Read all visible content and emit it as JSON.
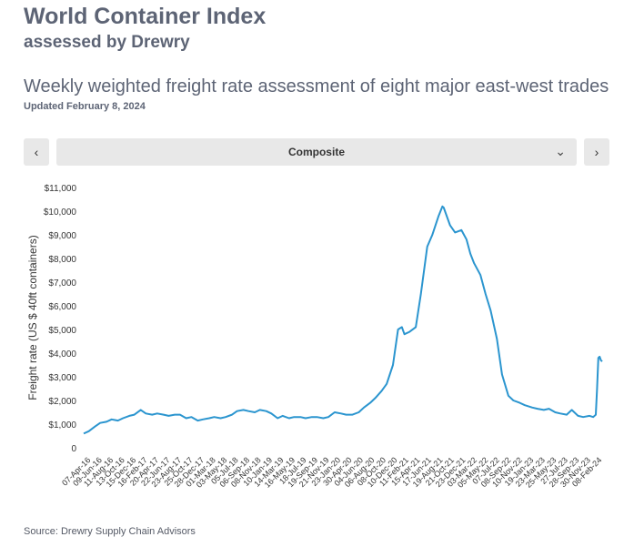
{
  "header": {
    "title": "World Container Index",
    "subtitle": "assessed by Drewry",
    "heading": "Weekly weighted freight rate assessment of eight major east-west trades",
    "updated": "Updated February 8, 2024"
  },
  "controls": {
    "prev_label": "‹",
    "next_label": "›",
    "selector_value": "Composite",
    "selector_chevron": "⌄"
  },
  "footer": {
    "source": "Source: Drewry Supply Chain Advisors"
  },
  "colors": {
    "line": "#2b95cf",
    "text": "#555a66",
    "button": "#e8e8e8"
  },
  "chart_data": {
    "type": "line",
    "title": "",
    "xlabel": "",
    "ylabel": "Freight rate (US $ 40ft containers)",
    "ylim": [
      0,
      11000
    ],
    "grid": false,
    "y_ticks": [
      "0",
      "$1,000",
      "$2,000",
      "$3,000",
      "$4,000",
      "$5,000",
      "$6,000",
      "$7,000",
      "$8,000",
      "$9,000",
      "$10,000",
      "$11,000"
    ],
    "x_tick_labels": [
      "07-Apr-16",
      "09-Jun-16",
      "11-Aug-16",
      "13-Oct-16",
      "15-Dec-16",
      "16-Feb-17",
      "20-Apr-17",
      "22-Jun-17",
      "23-Aug-17",
      "25-Oct-17",
      "28-Dec-17",
      "01-Mar-18",
      "03-May-18",
      "05-Jul-18",
      "06-Sep-18",
      "08-Nov-18",
      "10-Jan-19",
      "14-Mar-19",
      "16-May-19",
      "18-Jul-19",
      "19-Sep-19",
      "21-Nov-19",
      "23-Jan-20",
      "30-Apr-20",
      "04-Jun-20",
      "06-Aug-20",
      "08-Oct-20",
      "10-Dec-20",
      "11-Feb-21",
      "15-Apr-21",
      "17-Jun-21",
      "19-Aug-21",
      "21-Oct-21",
      "23-Dec-21",
      "03-Mar-22",
      "05-May-22",
      "07-Jul-22",
      "08-Sep-22",
      "10-Nov-22",
      "19-Jan-23",
      "23-Mar-23",
      "25-May-23",
      "27-Jul-23",
      "28-Sep-23",
      "30-Nov-23",
      "08-Feb-24"
    ],
    "series": [
      {
        "name": "",
        "x": [
          "2016-04-07",
          "2016-05-05",
          "2016-06-09",
          "2016-07-07",
          "2016-08-11",
          "2016-09-08",
          "2016-10-13",
          "2016-11-10",
          "2016-12-15",
          "2017-01-12",
          "2017-02-16",
          "2017-03-16",
          "2017-04-20",
          "2017-05-18",
          "2017-06-22",
          "2017-07-20",
          "2017-08-23",
          "2017-09-21",
          "2017-10-25",
          "2017-11-23",
          "2017-12-28",
          "2018-01-25",
          "2018-03-01",
          "2018-03-29",
          "2018-05-03",
          "2018-05-31",
          "2018-07-05",
          "2018-08-02",
          "2018-09-06",
          "2018-10-04",
          "2018-11-08",
          "2018-12-06",
          "2019-01-10",
          "2019-02-07",
          "2019-03-14",
          "2019-04-11",
          "2019-05-16",
          "2019-06-13",
          "2019-07-18",
          "2019-08-15",
          "2019-09-19",
          "2019-10-17",
          "2019-11-21",
          "2019-12-19",
          "2020-01-23",
          "2020-02-27",
          "2020-03-26",
          "2020-04-30",
          "2020-06-04",
          "2020-07-02",
          "2020-08-06",
          "2020-09-03",
          "2020-10-08",
          "2020-11-05",
          "2020-12-10",
          "2021-01-07",
          "2021-01-28",
          "2021-02-11",
          "2021-03-11",
          "2021-04-15",
          "2021-05-13",
          "2021-06-17",
          "2021-07-15",
          "2021-08-19",
          "2021-09-09",
          "2021-09-16",
          "2021-10-21",
          "2021-11-18",
          "2021-12-23",
          "2022-01-20",
          "2022-02-10",
          "2022-03-03",
          "2022-04-07",
          "2022-05-05",
          "2022-06-02",
          "2022-07-07",
          "2022-08-04",
          "2022-09-08",
          "2022-10-06",
          "2022-11-10",
          "2022-12-08",
          "2023-01-19",
          "2023-02-16",
          "2023-03-23",
          "2023-04-20",
          "2023-05-25",
          "2023-06-22",
          "2023-07-27",
          "2023-08-24",
          "2023-09-28",
          "2023-10-26",
          "2023-11-30",
          "2023-12-21",
          "2024-01-04",
          "2024-01-11",
          "2024-01-18",
          "2024-01-25",
          "2024-02-01",
          "2024-02-08"
        ],
        "values": [
          600,
          700,
          900,
          1050,
          1100,
          1200,
          1150,
          1250,
          1350,
          1400,
          1600,
          1450,
          1400,
          1450,
          1400,
          1350,
          1400,
          1400,
          1250,
          1300,
          1150,
          1200,
          1250,
          1300,
          1250,
          1300,
          1400,
          1550,
          1600,
          1550,
          1500,
          1600,
          1550,
          1450,
          1250,
          1350,
          1250,
          1300,
          1300,
          1250,
          1300,
          1300,
          1250,
          1300,
          1500,
          1450,
          1400,
          1400,
          1500,
          1700,
          1900,
          2100,
          2400,
          2700,
          3500,
          5000,
          5100,
          4800,
          4900,
          5100,
          6500,
          8500,
          9000,
          9800,
          10200,
          10150,
          9400,
          9100,
          9200,
          8800,
          8200,
          7800,
          7300,
          6500,
          5800,
          4600,
          3100,
          2200,
          2000,
          1900,
          1800,
          1700,
          1650,
          1600,
          1650,
          1500,
          1450,
          1400,
          1600,
          1350,
          1300,
          1350,
          1300,
          1400,
          2500,
          3800,
          3850,
          3700,
          3650
        ]
      }
    ]
  }
}
